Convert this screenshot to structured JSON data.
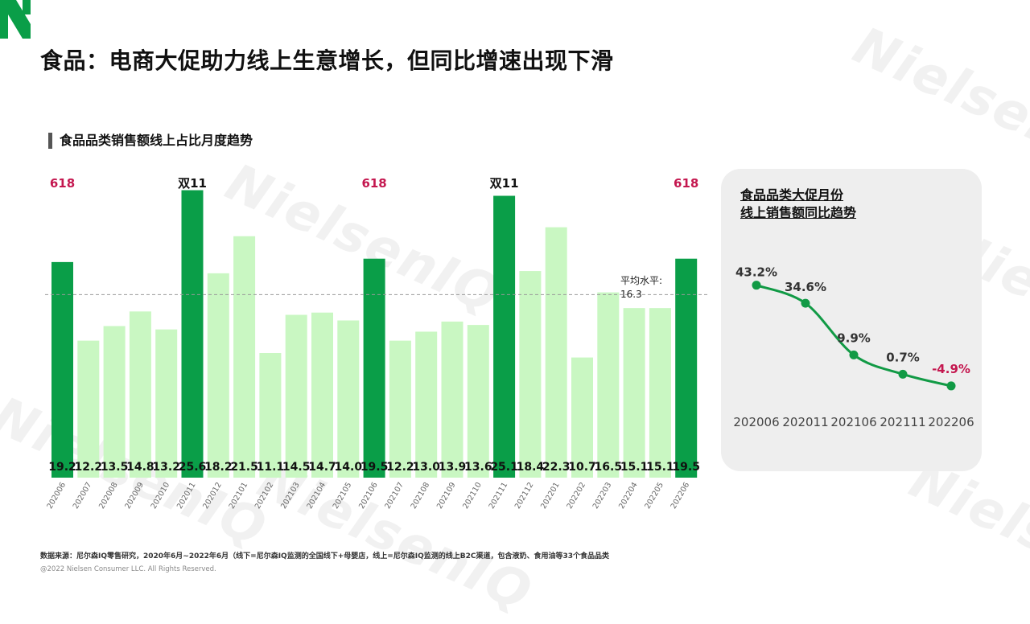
{
  "slide": {
    "title": "食品：电商大促助力线上生意增长，但同比增速出现下滑",
    "watermark_text": "NielsenIQ",
    "footnote": "数据来源：尼尔森IQ零售研究，2020年6月~2022年6月（线下=尼尔森IQ监测的全国线下+母婴店，线上=尼尔森IQ监测的线上B2C渠道，包含液奶、食用油等33个食品品类",
    "copyright": "@2022 Nielsen Consumer LLC. All Rights Reserved."
  },
  "colors": {
    "bar_promo": "#0a9e48",
    "bar_regular": "#c9f7c2",
    "line": "#119a45",
    "label_618": "#c4174f",
    "negative": "#c4174f"
  },
  "chart_data": [
    {
      "type": "bar",
      "title": "食品品类销售额线上占比月度趋势",
      "categories": [
        "202006",
        "202007",
        "202008",
        "202009",
        "202010",
        "202011",
        "202012",
        "202101",
        "202102",
        "202103",
        "202104",
        "202105",
        "202106",
        "202107",
        "202108",
        "202109",
        "202110",
        "202111",
        "202112",
        "202201",
        "202202",
        "202203",
        "202204",
        "202205",
        "202206"
      ],
      "values": [
        19.2,
        12.2,
        13.5,
        14.8,
        13.2,
        25.6,
        18.2,
        21.5,
        11.1,
        14.5,
        14.7,
        14.0,
        19.5,
        12.2,
        13.0,
        13.9,
        13.6,
        25.1,
        18.4,
        22.3,
        10.7,
        16.5,
        15.1,
        15.1,
        19.5
      ],
      "value_labels": [
        "19.2",
        "12.2",
        "13.5",
        "14.8",
        "13.2",
        "25.6",
        "18.2",
        "21.5",
        "11.1",
        "14.5",
        "14.7",
        "14.0",
        "19.5",
        "12.2",
        "13.0",
        "13.9",
        "13.6",
        "25.1",
        "18.4",
        "22.3",
        "10.7",
        "16.5",
        "15.1",
        "15.1",
        "19.5"
      ],
      "highlight": [
        true,
        false,
        false,
        false,
        false,
        true,
        false,
        false,
        false,
        false,
        false,
        false,
        true,
        false,
        false,
        false,
        false,
        true,
        false,
        false,
        false,
        false,
        false,
        false,
        true
      ],
      "events": [
        {
          "index": 0,
          "label": "618",
          "style": "red"
        },
        {
          "index": 5,
          "label": "双11",
          "style": "black"
        },
        {
          "index": 12,
          "label": "618",
          "style": "red"
        },
        {
          "index": 17,
          "label": "双11",
          "style": "black"
        },
        {
          "index": 24,
          "label": "618",
          "style": "red"
        }
      ],
      "average": {
        "value": 16.3,
        "label": "平均水平:",
        "value_label": "16.3"
      },
      "ylim": [
        0,
        28
      ],
      "xlabel": "",
      "ylabel": ""
    },
    {
      "type": "line",
      "title": "食品品类大促月份\n线上销售额同比趋势",
      "title_lines": [
        "食品品类大促月份",
        "线上销售额同比趋势"
      ],
      "categories": [
        "202006",
        "202011",
        "202106",
        "202111",
        "202206"
      ],
      "values": [
        43.2,
        34.6,
        9.9,
        0.7,
        -4.9
      ],
      "value_labels": [
        "43.2%",
        "34.6%",
        "9.9%",
        "0.7%",
        "-4.9%"
      ],
      "unit": "%",
      "ylim": [
        -8,
        45
      ]
    }
  ]
}
